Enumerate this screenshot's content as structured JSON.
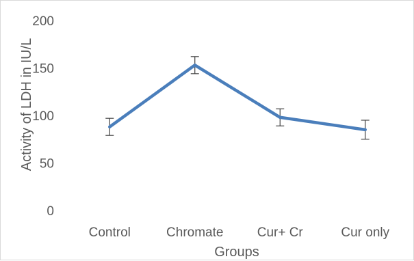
{
  "chart_data": {
    "type": "line",
    "categories": [
      "Control",
      "Chromate",
      "Cur+ Cr",
      "Cur only"
    ],
    "series": [
      {
        "values": [
          88,
          153,
          98,
          85
        ],
        "error": [
          9,
          9,
          9,
          10
        ],
        "color": "#4a7ebb"
      }
    ],
    "xlabel": "Groups",
    "ylabel": "Activity of LDH in IU/L",
    "ylim": [
      0,
      200
    ],
    "yticks": [
      0,
      50,
      100,
      150,
      200
    ],
    "grid": false,
    "legend": "none"
  }
}
